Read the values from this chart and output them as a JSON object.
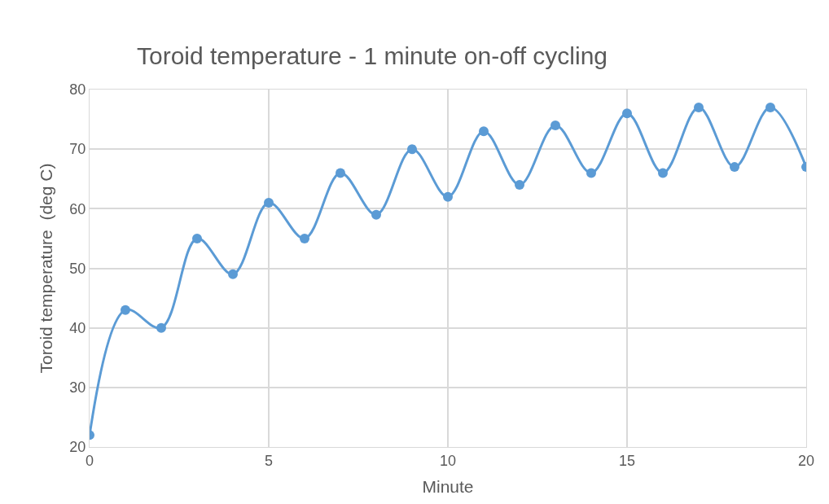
{
  "chart_data": {
    "type": "line",
    "title": "Toroid temperature - 1 minute on-off cycling",
    "xlabel": "Minute",
    "ylabel": "Toroid temperature  (deg C)",
    "x": [
      0,
      1,
      2,
      3,
      4,
      5,
      6,
      7,
      8,
      9,
      10,
      11,
      12,
      13,
      14,
      15,
      16,
      17,
      18,
      19,
      20
    ],
    "series": [
      {
        "color": "#5b9bd5",
        "values": [
          22,
          43,
          40,
          55,
          49,
          61,
          55,
          66,
          59,
          70,
          62,
          73,
          64,
          74,
          66,
          76,
          66,
          77,
          67,
          77,
          67
        ]
      }
    ],
    "xlim": [
      0,
      20
    ],
    "xticks": [
      0,
      5,
      10,
      15,
      20
    ],
    "ylim": [
      20,
      80
    ],
    "yticks": [
      20,
      30,
      40,
      50,
      60,
      70,
      80
    ],
    "grid": true,
    "legend": false,
    "marker": "circle",
    "line_style": "solid"
  }
}
